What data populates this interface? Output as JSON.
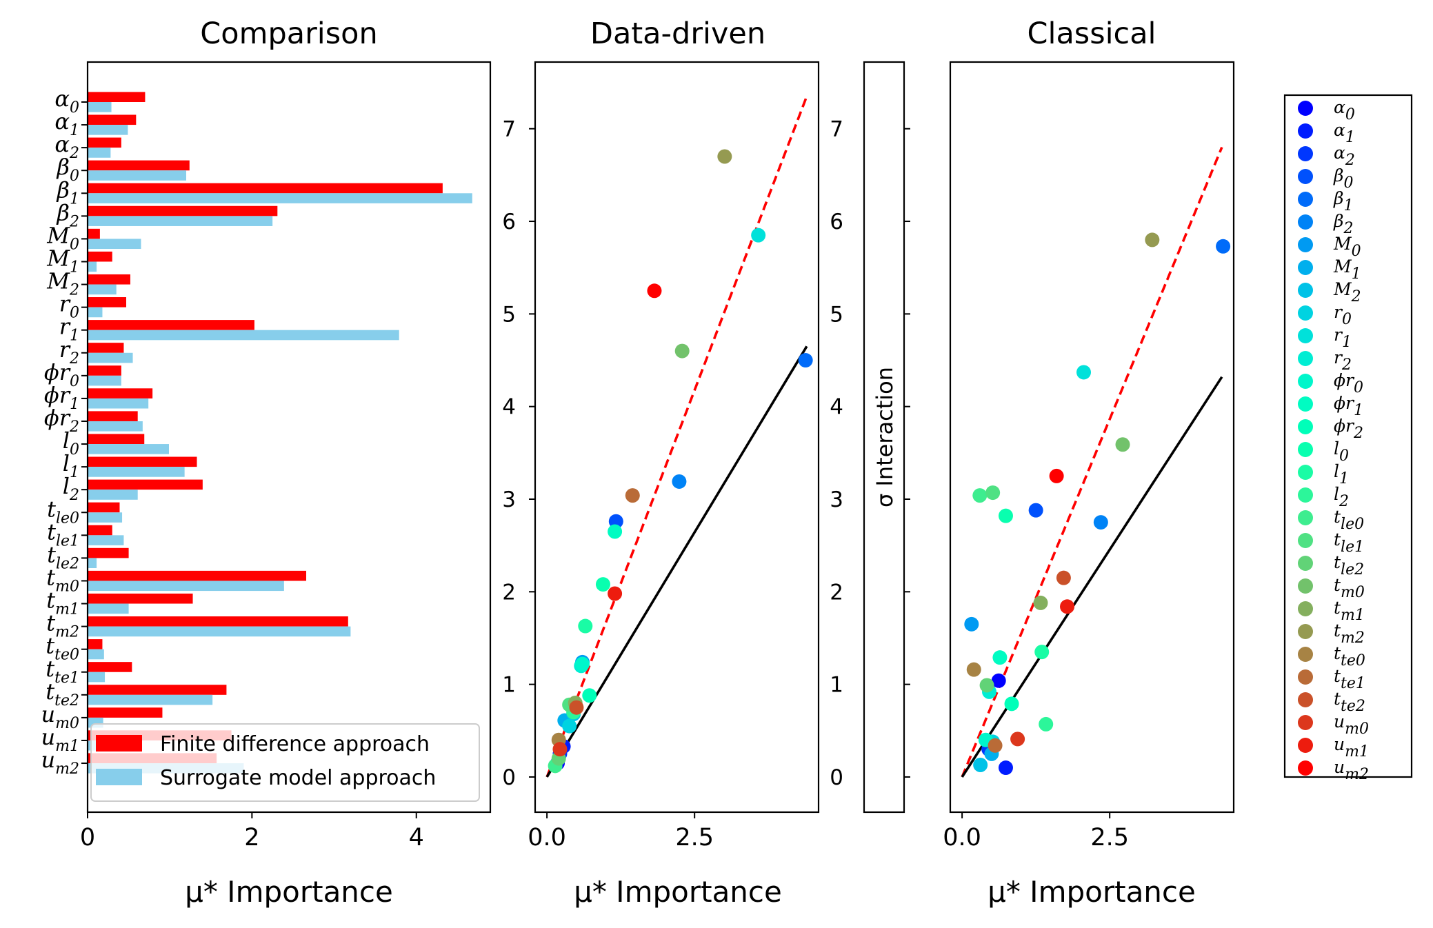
{
  "colors": {
    "finite_difference": "#ff0000",
    "surrogate": "#87ceeb",
    "reference_dashed": "#ff0000",
    "reference_solid": "#000000"
  },
  "legend": {
    "approach_items": [
      "Finite difference approach",
      "Surrogate model approach"
    ]
  },
  "chart_data": [
    {
      "type": "bar",
      "orientation": "horizontal",
      "title": "Comparison",
      "xlabel": "μ* Importance",
      "xlim": [
        0,
        4.9
      ],
      "xticks": [
        0,
        2,
        4
      ],
      "categories": [
        {
          "base": "α",
          "sub": "0"
        },
        {
          "base": "α",
          "sub": "1"
        },
        {
          "base": "α",
          "sub": "2"
        },
        {
          "base": "β",
          "sub": "0"
        },
        {
          "base": "β",
          "sub": "1"
        },
        {
          "base": "β",
          "sub": "2"
        },
        {
          "base": "M",
          "sub": "0"
        },
        {
          "base": "M",
          "sub": "1"
        },
        {
          "base": "M",
          "sub": "2"
        },
        {
          "base": "r",
          "sub": "0"
        },
        {
          "base": "r",
          "sub": "1"
        },
        {
          "base": "r",
          "sub": "2"
        },
        {
          "base": "ϕr",
          "sub": "0"
        },
        {
          "base": "ϕr",
          "sub": "1"
        },
        {
          "base": "ϕr",
          "sub": "2"
        },
        {
          "base": "l",
          "sub": "0"
        },
        {
          "base": "l",
          "sub": "1"
        },
        {
          "base": "l",
          "sub": "2"
        },
        {
          "base": "t",
          "sub": "le0"
        },
        {
          "base": "t",
          "sub": "le1"
        },
        {
          "base": "t",
          "sub": "le2"
        },
        {
          "base": "t",
          "sub": "m0"
        },
        {
          "base": "t",
          "sub": "m1"
        },
        {
          "base": "t",
          "sub": "m2"
        },
        {
          "base": "t",
          "sub": "te0"
        },
        {
          "base": "t",
          "sub": "te1"
        },
        {
          "base": "t",
          "sub": "te2"
        },
        {
          "base": "u",
          "sub": "m0"
        },
        {
          "base": "u",
          "sub": "m1"
        },
        {
          "base": "u",
          "sub": "m2"
        }
      ],
      "series": [
        {
          "name": "Finite difference approach",
          "values": [
            0.7,
            0.59,
            0.41,
            1.24,
            4.32,
            2.31,
            0.15,
            0.3,
            0.52,
            0.47,
            2.03,
            0.44,
            0.41,
            0.79,
            0.61,
            0.69,
            1.33,
            1.4,
            0.39,
            0.3,
            0.5,
            2.66,
            1.28,
            3.17,
            0.18,
            0.54,
            1.69,
            0.91,
            1.75,
            1.57
          ]
        },
        {
          "name": "Surrogate model approach",
          "values": [
            0.29,
            0.49,
            0.28,
            1.2,
            4.68,
            2.25,
            0.65,
            0.11,
            0.35,
            0.18,
            3.79,
            0.55,
            0.41,
            0.74,
            0.67,
            0.99,
            1.18,
            0.61,
            0.42,
            0.44,
            0.11,
            2.39,
            0.5,
            3.2,
            0.2,
            0.21,
            1.52,
            0.19,
            0.3,
            1.9
          ]
        }
      ]
    },
    {
      "type": "scatter",
      "title": "Data-driven",
      "xlabel": "μ* Importance",
      "ylabel": "σ Interaction",
      "xlim": [
        -0.2,
        4.6
      ],
      "ylim": [
        -0.38,
        7.72
      ],
      "xticks": [
        0.0,
        2.5
      ],
      "xtick_labels": [
        "0.0",
        "2.5"
      ],
      "yticks": [
        0,
        1,
        2,
        3,
        4,
        5,
        6,
        7
      ],
      "lines": [
        {
          "style": "dashed",
          "color": "#ff0000",
          "points": [
            [
              0,
              0
            ],
            [
              4.4,
              7.35
            ]
          ]
        },
        {
          "style": "solid",
          "color": "#000000",
          "points": [
            [
              0,
              0
            ],
            [
              4.4,
              4.65
            ]
          ]
        }
      ],
      "points": [
        {
          "label": "α₀",
          "x": 0.18,
          "y": 0.15
        },
        {
          "label": "α₁",
          "x": 0.28,
          "y": 0.33
        },
        {
          "label": "α₂",
          "x": 0.22,
          "y": 0.25
        },
        {
          "label": "β₀",
          "x": 1.17,
          "y": 2.76
        },
        {
          "label": "β₁",
          "x": 4.38,
          "y": 4.5
        },
        {
          "label": "β₂",
          "x": 2.24,
          "y": 3.19
        },
        {
          "label": "M₀",
          "x": 0.6,
          "y": 1.24
        },
        {
          "label": "M₁",
          "x": 0.3,
          "y": 0.61
        },
        {
          "label": "M₂",
          "x": 0.45,
          "y": 0.68
        },
        {
          "label": "r₀",
          "x": 0.38,
          "y": 0.55
        },
        {
          "label": "r₁",
          "x": 3.58,
          "y": 5.85
        },
        {
          "label": "r₂",
          "x": 0.58,
          "y": 1.2
        },
        {
          "label": "ϕr₀",
          "x": 0.6,
          "y": 1.22
        },
        {
          "label": "ϕr₁",
          "x": 1.15,
          "y": 2.65
        },
        {
          "label": "ϕr₂",
          "x": 0.72,
          "y": 0.88
        },
        {
          "label": "l₀",
          "x": 0.95,
          "y": 2.08
        },
        {
          "label": "l₁",
          "x": 0.65,
          "y": 1.63
        },
        {
          "label": "l₂",
          "x": 0.45,
          "y": 0.7
        },
        {
          "label": "tle0",
          "x": 0.14,
          "y": 0.12
        },
        {
          "label": "tle1",
          "x": 0.38,
          "y": 0.78
        },
        {
          "label": "tle2",
          "x": 0.2,
          "y": 0.2
        },
        {
          "label": "tm0",
          "x": 2.29,
          "y": 4.6
        },
        {
          "label": "tm1",
          "x": 0.48,
          "y": 0.8
        },
        {
          "label": "tm2",
          "x": 3.01,
          "y": 6.7
        },
        {
          "label": "tte0",
          "x": 0.2,
          "y": 0.4
        },
        {
          "label": "tte1",
          "x": 1.45,
          "y": 3.04
        },
        {
          "label": "tte2",
          "x": 0.5,
          "y": 0.75
        },
        {
          "label": "um0",
          "x": 0.22,
          "y": 0.3
        },
        {
          "label": "um1",
          "x": 1.15,
          "y": 1.98
        },
        {
          "label": "um2",
          "x": 1.82,
          "y": 5.25
        }
      ]
    },
    {
      "type": "scatter",
      "title": "Classical",
      "xlabel": "μ* Importance",
      "xlim": [
        -0.2,
        4.6
      ],
      "ylim": [
        -0.38,
        7.72
      ],
      "xticks": [
        0.0,
        2.5
      ],
      "xtick_labels": [
        "0.0",
        "2.5"
      ],
      "yticks": [
        0,
        1,
        2,
        3,
        4,
        5,
        6,
        7
      ],
      "lines": [
        {
          "style": "dashed",
          "color": "#ff0000",
          "points": [
            [
              0,
              0
            ],
            [
              4.4,
              6.8
            ]
          ]
        },
        {
          "style": "solid",
          "color": "#000000",
          "points": [
            [
              0,
              0
            ],
            [
              4.4,
              4.32
            ]
          ]
        }
      ],
      "points": [
        {
          "label": "α₀",
          "x": 0.62,
          "y": 1.04
        },
        {
          "label": "α₁",
          "x": 0.74,
          "y": 0.1
        },
        {
          "label": "α₂",
          "x": 0.45,
          "y": 0.3
        },
        {
          "label": "β₀",
          "x": 1.25,
          "y": 2.88
        },
        {
          "label": "β₁",
          "x": 4.42,
          "y": 5.73
        },
        {
          "label": "β₂",
          "x": 2.35,
          "y": 2.75
        },
        {
          "label": "M₀",
          "x": 0.16,
          "y": 1.65
        },
        {
          "label": "M₁",
          "x": 0.5,
          "y": 0.25
        },
        {
          "label": "M₂",
          "x": 0.31,
          "y": 0.13
        },
        {
          "label": "r₀",
          "x": 0.52,
          "y": 0.38
        },
        {
          "label": "r₁",
          "x": 2.06,
          "y": 4.37
        },
        {
          "label": "r₂",
          "x": 0.46,
          "y": 0.92
        },
        {
          "label": "ϕr₀",
          "x": 0.4,
          "y": 0.4
        },
        {
          "label": "ϕr₁",
          "x": 0.64,
          "y": 1.29
        },
        {
          "label": "ϕr₂",
          "x": 0.84,
          "y": 0.79
        },
        {
          "label": "l₀",
          "x": 0.74,
          "y": 2.82
        },
        {
          "label": "l₁",
          "x": 1.35,
          "y": 1.35
        },
        {
          "label": "l₂",
          "x": 1.42,
          "y": 0.57
        },
        {
          "label": "tle0",
          "x": 0.3,
          "y": 3.04
        },
        {
          "label": "tle1",
          "x": 0.52,
          "y": 3.07
        },
        {
          "label": "tle2",
          "x": 0.42,
          "y": 0.99
        },
        {
          "label": "tm0",
          "x": 2.72,
          "y": 3.59
        },
        {
          "label": "tm1",
          "x": 1.33,
          "y": 1.88
        },
        {
          "label": "tm2",
          "x": 3.22,
          "y": 5.8
        },
        {
          "label": "tte0",
          "x": 0.2,
          "y": 1.16
        },
        {
          "label": "tte1",
          "x": 0.56,
          "y": 0.34
        },
        {
          "label": "tte2",
          "x": 1.72,
          "y": 2.15
        },
        {
          "label": "um0",
          "x": 0.94,
          "y": 0.41
        },
        {
          "label": "um1",
          "x": 1.78,
          "y": 1.84
        },
        {
          "label": "um2",
          "x": 1.6,
          "y": 3.25
        }
      ]
    }
  ]
}
